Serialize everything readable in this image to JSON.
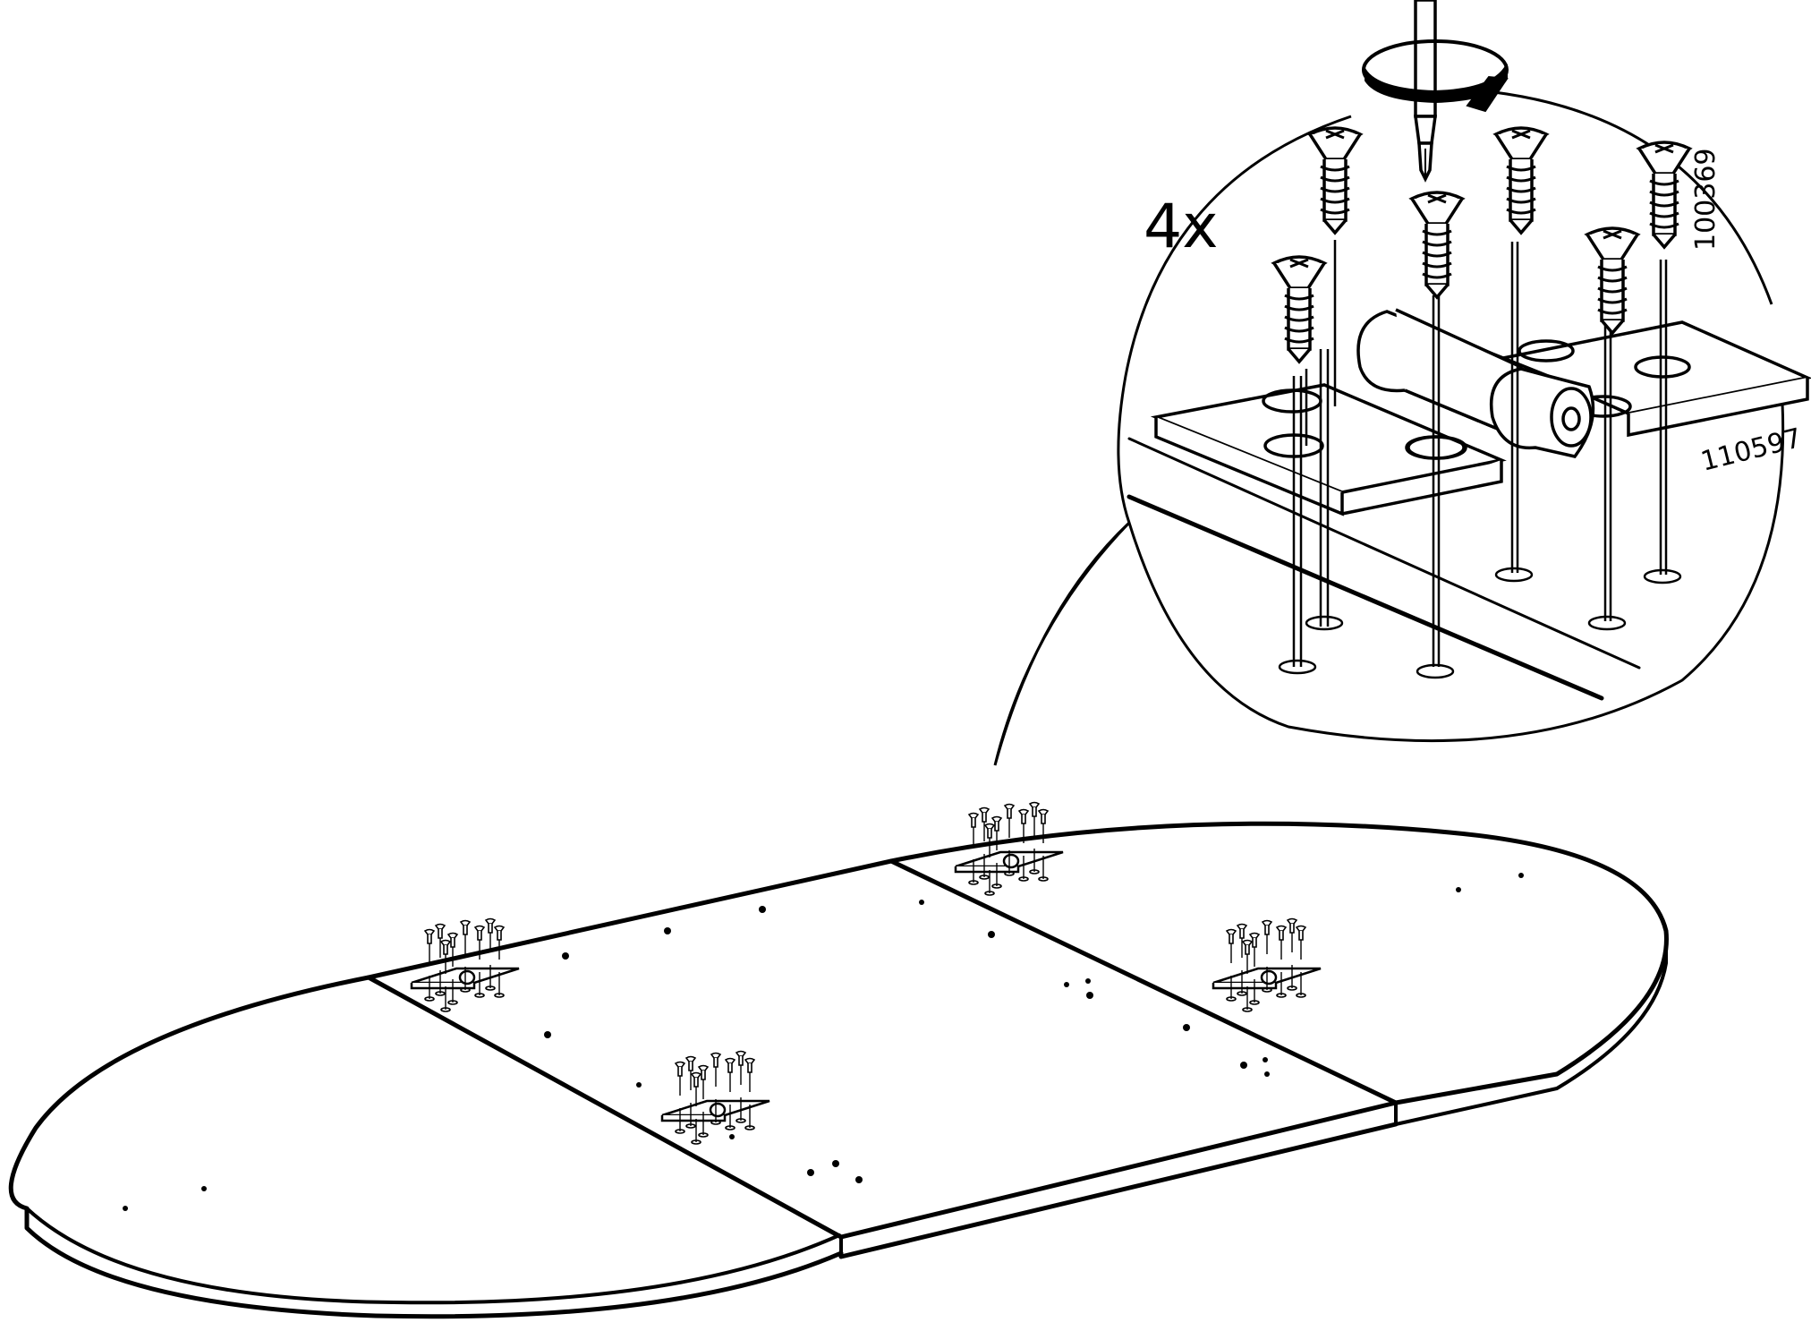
{
  "diagram": {
    "quantity_label": "4x",
    "part_numbers": {
      "screw": "100369",
      "bracket": "110597"
    },
    "tool": "screwdriver-icon",
    "rotation": "clockwise-arrow-icon",
    "line_color": "#000000",
    "background_color": "#ffffff"
  }
}
